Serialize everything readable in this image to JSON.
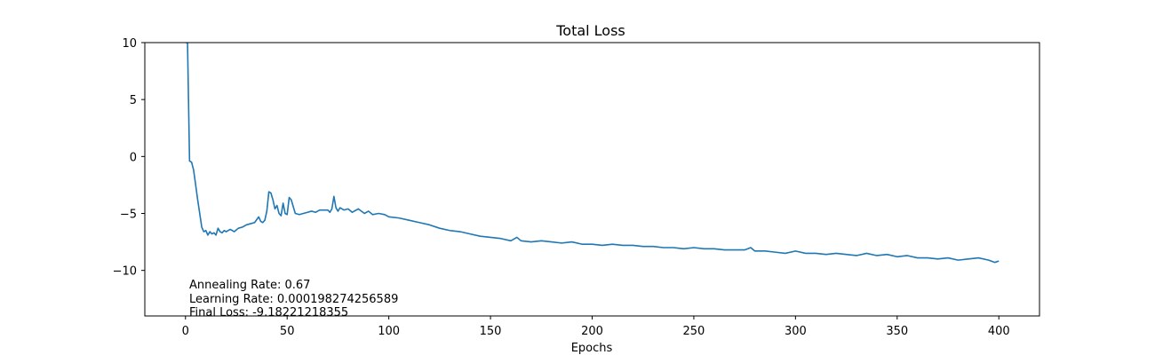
{
  "chart_data": {
    "type": "line",
    "title": "Total Loss",
    "xlabel": "Epochs",
    "ylabel": "",
    "xlim": [
      -20,
      420
    ],
    "ylim": [
      -14,
      10
    ],
    "grid": false,
    "xticks": [
      0,
      50,
      100,
      150,
      200,
      250,
      300,
      350,
      400
    ],
    "yticks": [
      10,
      5,
      0,
      -5,
      -10
    ],
    "ytick_labels": [
      "10",
      "5",
      "0",
      "−5",
      "−10"
    ],
    "series": [
      {
        "color": "#1f77b4",
        "x": [
          0,
          1,
          2,
          3,
          4,
          5,
          6,
          7,
          8,
          9,
          10,
          11,
          12,
          13,
          14,
          15,
          16,
          17,
          18,
          19,
          20,
          22,
          24,
          26,
          28,
          30,
          32,
          34,
          36,
          37,
          38,
          39,
          40,
          41,
          42,
          43,
          44,
          45,
          46,
          47,
          48,
          49,
          50,
          51,
          52,
          54,
          56,
          58,
          60,
          62,
          64,
          66,
          68,
          70,
          71,
          72,
          73,
          74,
          75,
          76,
          78,
          80,
          82,
          85,
          88,
          90,
          92,
          95,
          98,
          100,
          105,
          110,
          115,
          120,
          125,
          130,
          135,
          140,
          145,
          150,
          155,
          160,
          163,
          165,
          170,
          175,
          180,
          185,
          190,
          195,
          200,
          205,
          210,
          215,
          220,
          225,
          230,
          235,
          240,
          245,
          250,
          255,
          260,
          265,
          270,
          275,
          278,
          280,
          285,
          290,
          295,
          300,
          305,
          310,
          315,
          320,
          325,
          330,
          335,
          340,
          345,
          350,
          355,
          360,
          365,
          370,
          375,
          380,
          385,
          390,
          395,
          398,
          400
        ],
        "y": [
          10,
          10,
          -0.4,
          -0.5,
          -1.2,
          -2.5,
          -3.8,
          -5.0,
          -6.2,
          -6.6,
          -6.5,
          -6.9,
          -6.6,
          -6.8,
          -6.7,
          -6.9,
          -6.3,
          -6.6,
          -6.7,
          -6.5,
          -6.6,
          -6.4,
          -6.6,
          -6.3,
          -6.2,
          -6.0,
          -5.9,
          -5.8,
          -5.3,
          -5.7,
          -5.8,
          -5.6,
          -4.8,
          -3.1,
          -3.2,
          -3.8,
          -4.6,
          -4.3,
          -5.0,
          -5.2,
          -4.1,
          -5.0,
          -5.1,
          -3.6,
          -3.8,
          -5.0,
          -5.1,
          -5.0,
          -4.9,
          -4.8,
          -4.9,
          -4.7,
          -4.7,
          -4.7,
          -4.9,
          -4.6,
          -3.5,
          -4.5,
          -4.8,
          -4.5,
          -4.7,
          -4.6,
          -4.9,
          -4.6,
          -5.0,
          -4.8,
          -5.1,
          -5.0,
          -5.1,
          -5.3,
          -5.4,
          -5.6,
          -5.8,
          -6.0,
          -6.3,
          -6.5,
          -6.6,
          -6.8,
          -7.0,
          -7.1,
          -7.2,
          -7.4,
          -7.1,
          -7.4,
          -7.5,
          -7.4,
          -7.5,
          -7.6,
          -7.5,
          -7.7,
          -7.7,
          -7.8,
          -7.7,
          -7.8,
          -7.8,
          -7.9,
          -7.9,
          -8.0,
          -8.0,
          -8.1,
          -8.0,
          -8.1,
          -8.1,
          -8.2,
          -8.2,
          -8.2,
          -8.0,
          -8.3,
          -8.3,
          -8.4,
          -8.5,
          -8.3,
          -8.5,
          -8.5,
          -8.6,
          -8.5,
          -8.6,
          -8.7,
          -8.5,
          -8.7,
          -8.6,
          -8.8,
          -8.7,
          -8.9,
          -8.9,
          -9.0,
          -8.9,
          -9.1,
          -9.0,
          -8.9,
          -9.1,
          -9.3,
          -9.18
        ]
      }
    ],
    "annotations": [
      "Annealing Rate: 0.67",
      "Learning Rate: 0.000198274256589",
      "Final Loss: -9.18221218355"
    ]
  }
}
